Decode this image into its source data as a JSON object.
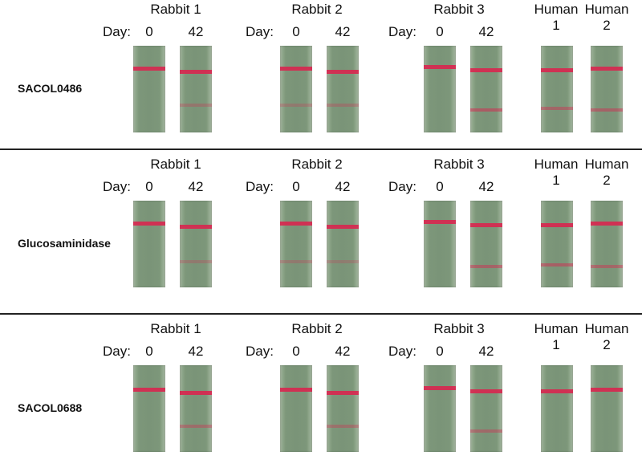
{
  "columns": [
    {
      "group": "Rabbit 1",
      "day_label": "Day:",
      "days": [
        "0",
        "42"
      ]
    },
    {
      "group": "Rabbit 2",
      "day_label": "Day:",
      "days": [
        "0",
        "42"
      ]
    },
    {
      "group": "Rabbit 3",
      "day_label": "Day:",
      "days": [
        "0",
        "42"
      ]
    },
    {
      "group": "Human",
      "sub": "1"
    },
    {
      "group": "Human",
      "sub": "2"
    }
  ],
  "panels": [
    {
      "antigen": "SACOL0486",
      "strips": [
        {
          "control": 1.0,
          "test": 0.0
        },
        {
          "control": 1.0,
          "test": 0.2
        },
        {
          "control": 1.0,
          "test": 0.15
        },
        {
          "control": 1.0,
          "test": 0.2
        },
        {
          "control": 1.0,
          "test": 0.0
        },
        {
          "control": 1.0,
          "test": 0.6
        },
        {
          "control": 1.0,
          "test": 0.45
        },
        {
          "control": 1.0,
          "test": 0.5
        }
      ]
    },
    {
      "antigen": "Glucosaminidase",
      "strips": [
        {
          "control": 1.0,
          "test": 0.0
        },
        {
          "control": 1.0,
          "test": 0.15
        },
        {
          "control": 1.0,
          "test": 0.15
        },
        {
          "control": 1.0,
          "test": 0.1
        },
        {
          "control": 1.0,
          "test": 0.0
        },
        {
          "control": 1.0,
          "test": 0.5
        },
        {
          "control": 1.0,
          "test": 0.55
        },
        {
          "control": 1.0,
          "test": 0.45
        }
      ]
    },
    {
      "antigen": "SACOL0688",
      "strips": [
        {
          "control": 1.0,
          "test": 0.0
        },
        {
          "control": 1.0,
          "test": 0.35
        },
        {
          "control": 1.0,
          "test": 0.0
        },
        {
          "control": 1.0,
          "test": 0.3
        },
        {
          "control": 1.0,
          "test": 0.0
        },
        {
          "control": 1.0,
          "test": 0.4
        },
        {
          "control": 1.0,
          "test": 0.0
        },
        {
          "control": 1.0,
          "test": 0.0
        }
      ]
    }
  ],
  "colors": {
    "strip": "#7a9478",
    "band": "#d8264f",
    "divider": "#222222"
  }
}
